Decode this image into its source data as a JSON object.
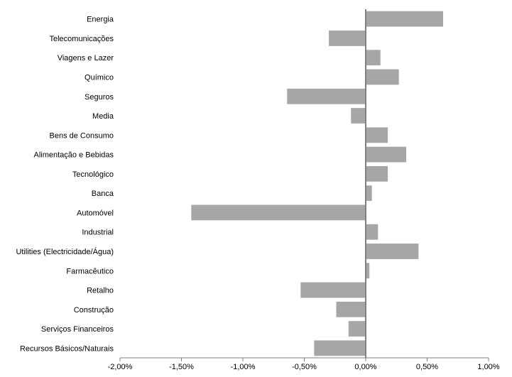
{
  "chart_data": {
    "type": "bar",
    "orientation": "horizontal",
    "title": "",
    "xlabel": "",
    "ylabel": "",
    "xlim": [
      -2.0,
      1.0
    ],
    "x_ticks": [
      "-2,00%",
      "-1,50%",
      "-1,00%",
      "-0,50%",
      "0,00%",
      "0,50%",
      "1,00%"
    ],
    "grid": false,
    "legend": "none",
    "bar_color": "#a6a6a6",
    "axis_color": "#808080",
    "categories": [
      "Energia",
      "Telecomunicações",
      "Viagens e Lazer",
      "Químico",
      "Seguros",
      "Media",
      "Bens de Consumo",
      "Alimentação e Bebidas",
      "Tecnológico",
      "Banca",
      "Automóvel",
      "Industrial",
      "Utilities (Electricidade/Água)",
      "Farmacêutico",
      "Retalho",
      "Construção",
      "Serviços Financeiros",
      "Recursos Básicos/Naturais"
    ],
    "values": [
      0.63,
      -0.3,
      0.12,
      0.27,
      -0.64,
      -0.12,
      0.18,
      0.33,
      0.18,
      0.05,
      -1.42,
      0.1,
      0.43,
      0.03,
      -0.53,
      -0.24,
      -0.14,
      -0.42
    ]
  }
}
